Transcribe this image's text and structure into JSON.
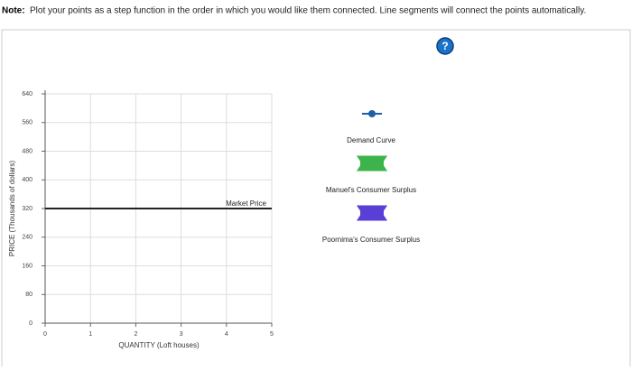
{
  "note": {
    "label": "Note:",
    "text": "Plot your points as a step function in the order in which you would like them connected. Line segments will connect the points automatically."
  },
  "help_icon": "?",
  "chart_data": {
    "type": "line",
    "x_label": "QUANTITY (Loft houses)",
    "y_label": "PRICE (Thousands of dollars)",
    "xlim": [
      0,
      5
    ],
    "xticks": [
      0,
      1,
      2,
      3,
      4,
      5
    ],
    "ylim": [
      0,
      640
    ],
    "yticks": [
      0,
      80,
      160,
      240,
      320,
      400,
      480,
      560,
      640
    ],
    "grid": true,
    "market_price": {
      "label": "Market Price",
      "value": 320,
      "color": "#222222"
    },
    "legend": [
      {
        "name": "Demand Curve",
        "color": "#1f5fa8",
        "marker": "line-circle"
      },
      {
        "name": "Manuel's Consumer Surplus",
        "color": "#3cb44b",
        "marker": "box"
      },
      {
        "name": "Poornima's Consumer Surplus",
        "color": "#5a3fd6",
        "marker": "box"
      }
    ]
  }
}
